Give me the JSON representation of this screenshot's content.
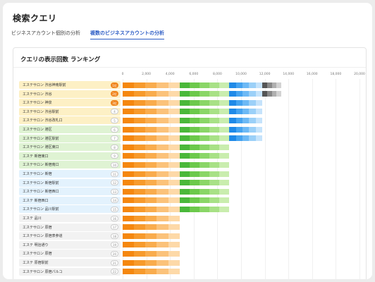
{
  "header": {
    "title": "検索クエリ"
  },
  "tabs": [
    {
      "label": "ビジネスアカウント個別の分析",
      "active": false
    },
    {
      "label": "複数のビジネスアカウントの分析",
      "active": true
    }
  ],
  "card": {
    "title": "クエリの表示回数 ランキング"
  },
  "colors": {
    "orange": [
      "#f5870f",
      "#f79a2c",
      "#f9ac4d",
      "#fbc27a",
      "#fdd9a8"
    ],
    "green": [
      "#4ab83a",
      "#6cc94b",
      "#8ad667",
      "#a8e186",
      "#c9edae"
    ],
    "blue": [
      "#1f8ae8",
      "#45a3f0",
      "#6db9f5",
      "#9bd0f8",
      "#c5e3fb"
    ],
    "gray": [
      "#555555",
      "#888888",
      "#b0b0b0",
      "#d3d3d3"
    ],
    "row_bg": {
      "yellow": "#fdf0c5",
      "green": "#dff3d3",
      "blue": "#e3f2fd",
      "gray": "#f2f2f2"
    }
  },
  "chart_data": {
    "type": "bar",
    "orientation": "horizontal",
    "stacked": true,
    "title": "クエリの表示回数 ランキング",
    "x_ticks": [
      "0",
      "2,000",
      "4,000",
      "6,000",
      "8,000",
      "10,000",
      "12,000",
      "14,000",
      "16,000",
      "18,000",
      "20,000"
    ],
    "xlim": [
      0,
      20000
    ],
    "categories": [
      "エステサロン 渋谷神南駅前",
      "エステサロン 渋谷",
      "エステサロン 神泉",
      "エステサロン 渋谷駅前",
      "エステサロン 渋谷改札口",
      "エステサロン 港区",
      "エステサロン 港区駅前",
      "エステサロン 港区東口",
      "エステ 新宿東口",
      "エステサロン 新宿南口",
      "エステサロン 新宿",
      "エステサロン 新宿駅前",
      "エステサロン 新宿西口",
      "エステ 新宿西口",
      "エステサロン 品川駅前",
      "エステ 品川",
      "エステサロン 原宿",
      "エステサロン 原宿表参道",
      "エステ 明治通り",
      "エステサロン 原宿",
      "エステ 原宿駅前",
      "エステサロン 原宿パルコ"
    ],
    "ranks": [
      "1位",
      "2位",
      "3位",
      "4",
      "5",
      "6",
      "7",
      "8",
      "9",
      "10",
      "11",
      "12",
      "13",
      "14",
      "15",
      "16",
      "17",
      "18",
      "19",
      "20",
      "21",
      "22"
    ],
    "row_groups": [
      "yellow",
      "yellow",
      "yellow",
      "yellow",
      "yellow",
      "green",
      "green",
      "green",
      "green",
      "green",
      "blue",
      "blue",
      "blue",
      "blue",
      "blue",
      "gray",
      "gray",
      "gray",
      "gray",
      "gray",
      "gray",
      "gray"
    ],
    "series": [
      {
        "group": "orange",
        "values": [
          4800,
          4800,
          4800,
          4800,
          4800,
          4800,
          4800,
          4800,
          4800,
          4800,
          4800,
          4800,
          4800,
          4800,
          4800,
          4800,
          4800,
          4800,
          4800,
          4800,
          4800,
          4800
        ]
      },
      {
        "group": "green",
        "values": [
          4200,
          4200,
          4200,
          4200,
          4200,
          4200,
          4200,
          4200,
          4200,
          4200,
          4200,
          4200,
          4200,
          4200,
          4200,
          0,
          0,
          0,
          0,
          0,
          0,
          0
        ]
      },
      {
        "group": "blue",
        "values": [
          2800,
          2800,
          2800,
          2800,
          2800,
          2800,
          2800,
          0,
          0,
          0,
          0,
          0,
          0,
          0,
          0,
          0,
          0,
          0,
          0,
          0,
          0,
          0
        ]
      },
      {
        "group": "gray",
        "values": [
          1600,
          1600,
          0,
          0,
          0,
          0,
          0,
          0,
          0,
          0,
          0,
          0,
          0,
          0,
          0,
          0,
          0,
          0,
          0,
          0,
          0,
          0
        ]
      }
    ]
  }
}
